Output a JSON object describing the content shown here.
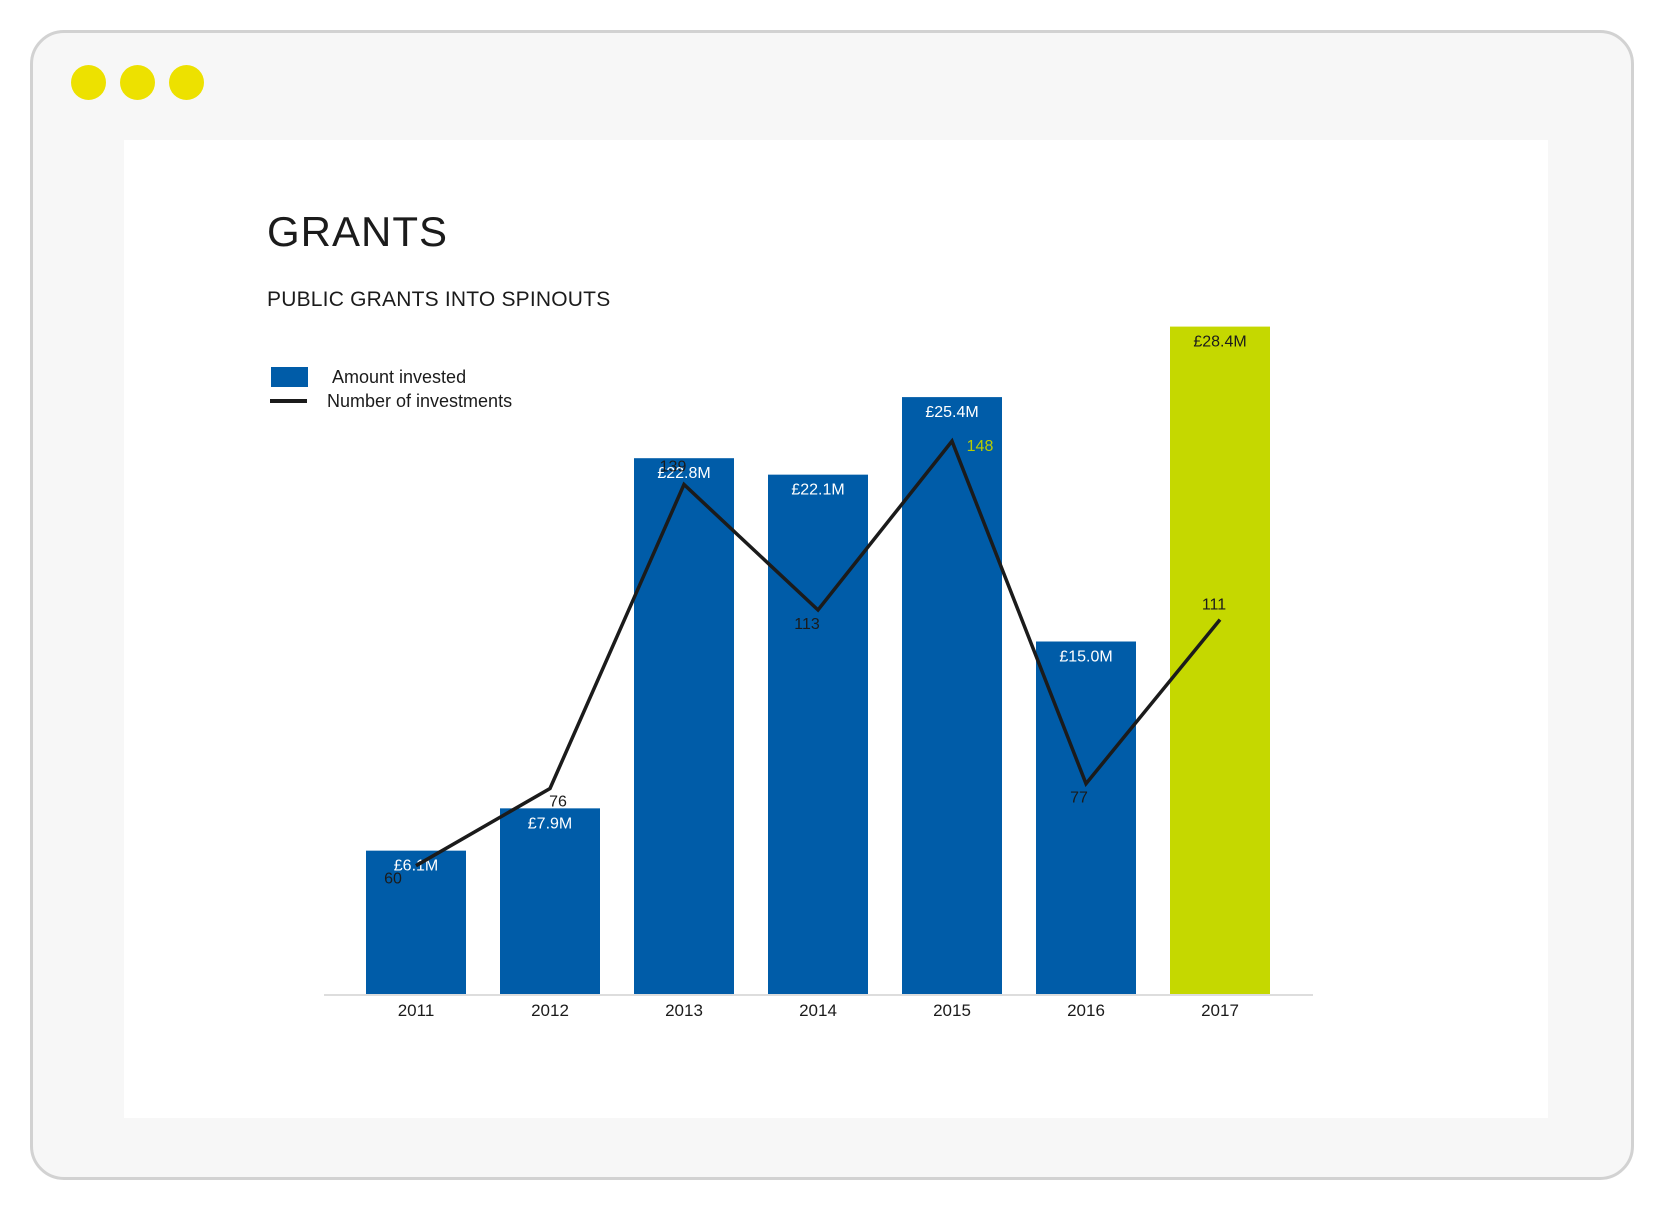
{
  "window": {
    "dot_color": "#ede100"
  },
  "chart_data": {
    "type": "bar",
    "title": "GRANTS",
    "subtitle": "PUBLIC GRANTS INTO SPINOUTS",
    "categories": [
      "2011",
      "2012",
      "2013",
      "2014",
      "2015",
      "2016",
      "2017"
    ],
    "series": [
      {
        "name": "Amount invested",
        "type": "bar",
        "unit": "£M",
        "values": [
          6.1,
          7.9,
          22.8,
          22.1,
          25.4,
          15.0,
          28.4
        ],
        "labels": [
          "£6.1M",
          "£7.9M",
          "£22.8M",
          "£22.1M",
          "£25.4M",
          "£15.0M",
          "£28.4M"
        ],
        "color": "#005ca8",
        "highlight_color": "#c5d800",
        "highlight_index": 6
      },
      {
        "name": "Number of investments",
        "type": "line",
        "values": [
          60,
          76,
          139,
          113,
          148,
          77,
          111
        ],
        "labels": [
          "60",
          "76",
          "139",
          "113",
          "148",
          "77",
          "111"
        ],
        "color": "#1b1b1b",
        "highlight_label_color": "#b8cc00",
        "highlight_label_index": 4
      }
    ],
    "legend": "top-left",
    "grid": false
  }
}
